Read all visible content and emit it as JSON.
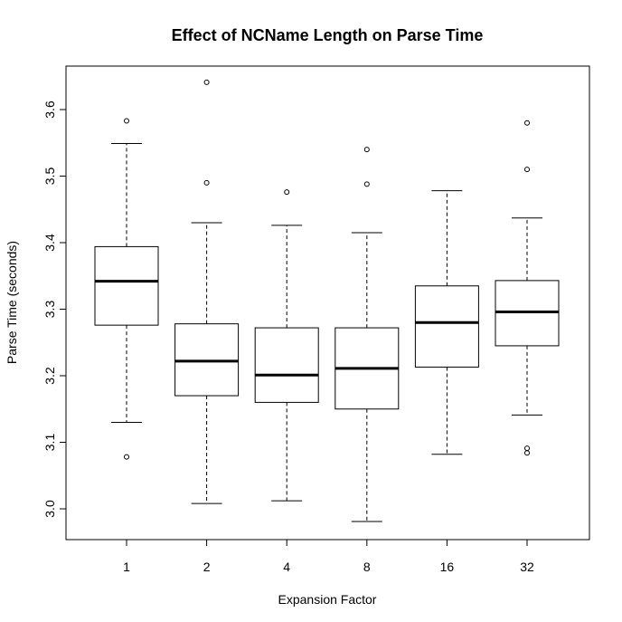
{
  "chart_data": {
    "type": "boxplot",
    "title": "Effect of NCName Length on Parse Time",
    "xlabel": "Expansion Factor",
    "ylabel": "Parse Time (seconds)",
    "categories": [
      "1",
      "2",
      "4",
      "8",
      "16",
      "32"
    ],
    "yticks": [
      "3.0",
      "3.1",
      "3.2",
      "3.3",
      "3.4",
      "3.5",
      "3.6"
    ],
    "ylim": [
      2.96,
      3.665
    ],
    "grid": false,
    "boxes": [
      {
        "category": "1",
        "whisker_low": 3.13,
        "q1": 3.276,
        "median": 3.342,
        "q3": 3.394,
        "whisker_high": 3.549,
        "outliers": [
          3.078,
          3.583
        ]
      },
      {
        "category": "2",
        "whisker_low": 3.008,
        "q1": 3.17,
        "median": 3.222,
        "q3": 3.278,
        "whisker_high": 3.43,
        "outliers": [
          3.49,
          3.641
        ]
      },
      {
        "category": "4",
        "whisker_low": 3.012,
        "q1": 3.16,
        "median": 3.201,
        "q3": 3.272,
        "whisker_high": 3.426,
        "outliers": [
          3.476
        ]
      },
      {
        "category": "8",
        "whisker_low": 2.981,
        "q1": 3.15,
        "median": 3.211,
        "q3": 3.272,
        "whisker_high": 3.415,
        "outliers": [
          3.488,
          3.54
        ]
      },
      {
        "category": "16",
        "whisker_low": 3.082,
        "q1": 3.213,
        "median": 3.28,
        "q3": 3.335,
        "whisker_high": 3.478,
        "outliers": []
      },
      {
        "category": "32",
        "whisker_low": 3.141,
        "q1": 3.245,
        "median": 3.296,
        "q3": 3.343,
        "whisker_high": 3.437,
        "outliers": [
          3.084,
          3.091,
          3.51,
          3.58
        ]
      }
    ]
  }
}
